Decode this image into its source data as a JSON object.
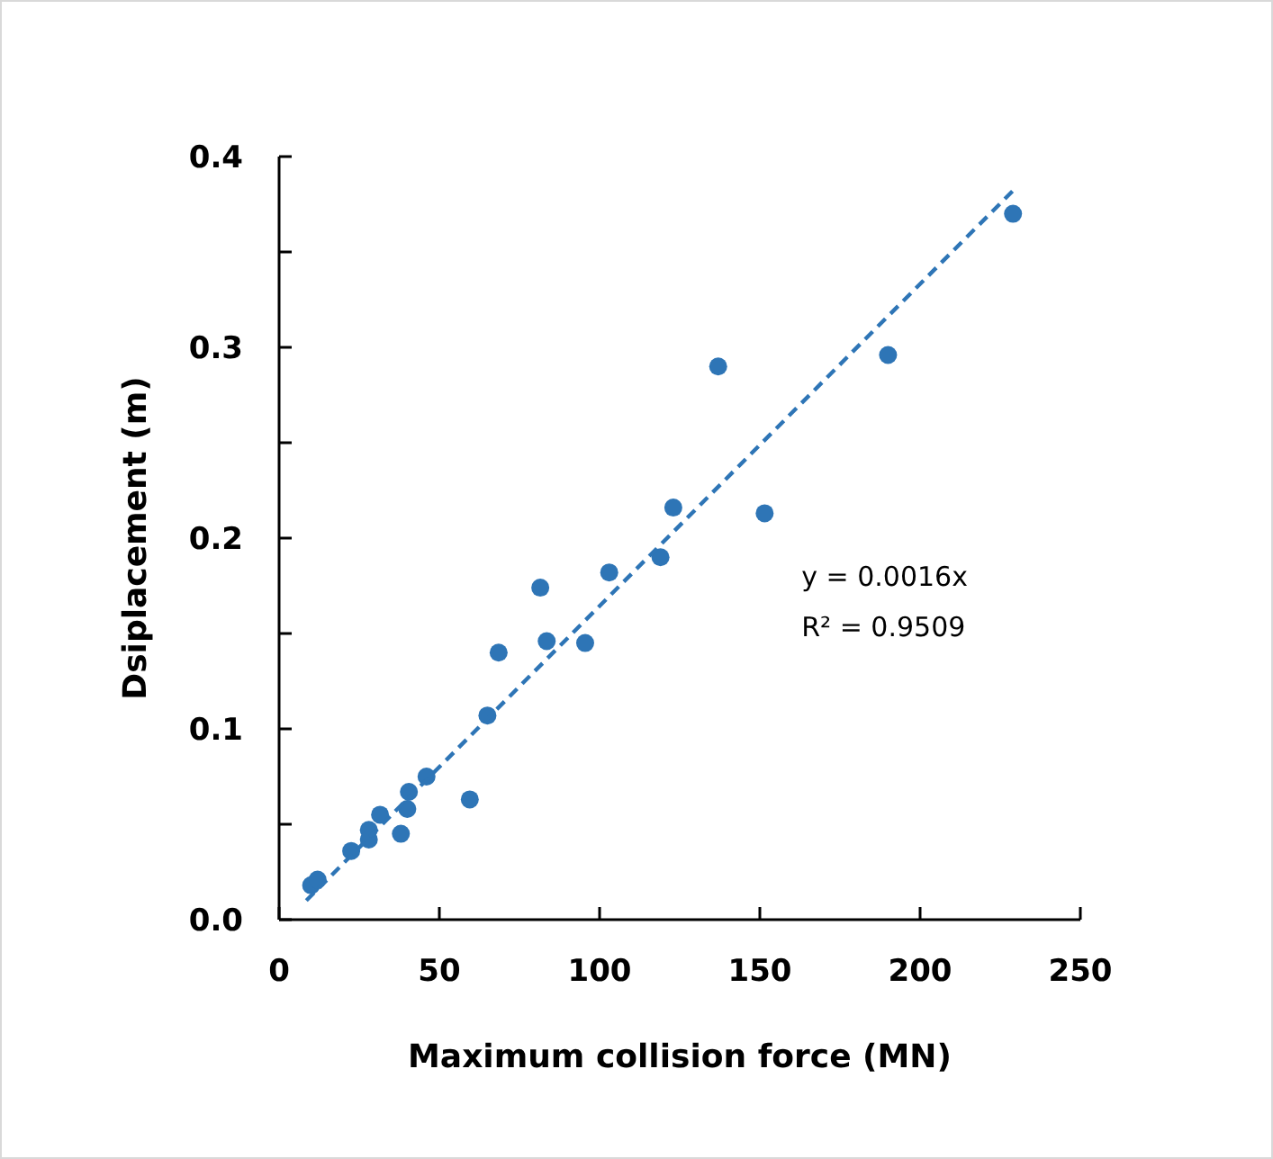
{
  "chart_data": {
    "type": "scatter",
    "xlabel": "Maximum collision force  (MN)",
    "ylabel": "Dsiplacement  (m)",
    "xlim": [
      0,
      250
    ],
    "xticks": [
      0,
      50,
      100,
      150,
      200,
      250
    ],
    "ylim": [
      0,
      0.4
    ],
    "yticks": [
      {
        "value": 0,
        "label": "0.0"
      },
      0.1,
      0.2,
      0.3,
      0.4,
      {
        "value": 0.05,
        "label": null
      },
      {
        "value": 0.15,
        "label": null
      },
      {
        "value": 0.25,
        "label": null
      },
      {
        "value": 0.35,
        "label": null
      }
    ],
    "grid": false,
    "marker": "circle",
    "series": [
      {
        "color": "#2e75b6",
        "x": [
          10,
          12,
          22.5,
          28,
          28,
          31.5,
          38,
          40,
          40.5,
          46,
          59.5,
          65,
          68.5,
          81.5,
          83.5,
          95.5,
          103,
          119,
          123,
          137,
          151.5,
          190,
          229
        ],
        "values": [
          0.018,
          0.021,
          0.036,
          0.047,
          0.042,
          0.055,
          0.045,
          0.058,
          0.067,
          0.075,
          0.063,
          0.107,
          0.14,
          0.174,
          0.146,
          0.145,
          0.182,
          0.19,
          0.216,
          0.29,
          0.213,
          0.296,
          0.37
        ]
      },
      {
        "type": "line",
        "color": "#2e75b6",
        "line_style": "dashed",
        "marker": "none",
        "x": [
          8.5,
          229.5
        ],
        "values": [
          0.01,
          0.383
        ]
      }
    ],
    "annotations": [
      "y = 0.0016x",
      "R² = 0.9509"
    ]
  }
}
